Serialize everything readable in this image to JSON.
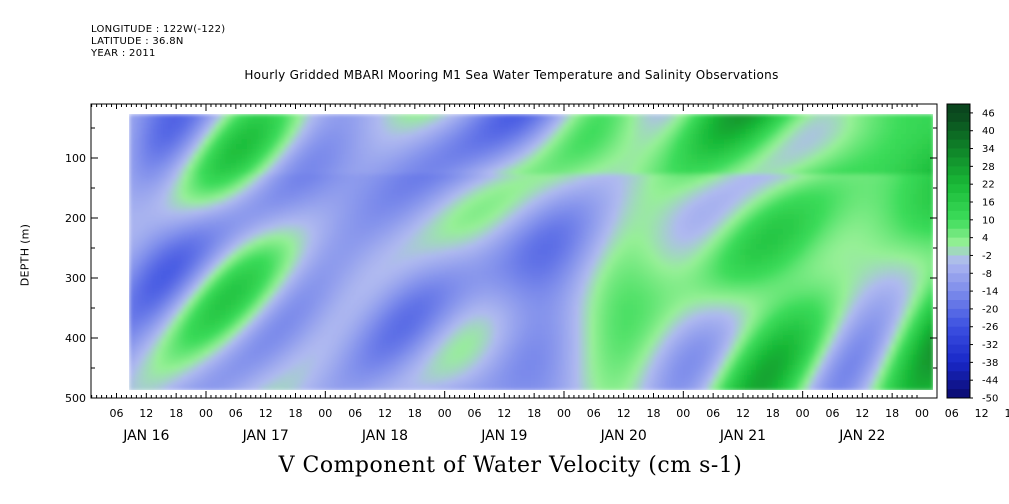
{
  "header": {
    "longitude": "LONGITUDE : 122W(-122)",
    "latitude": "LATITUDE : 36.8N",
    "year": "YEAR : 2011",
    "title": "Hourly Gridded MBARI Mooring M1 Sea Water Temperature and Salinity Observations"
  },
  "chart_data": {
    "type": "heatmap",
    "title": "Hourly Gridded MBARI Mooring M1 Sea Water Temperature and Salinity Observations",
    "xlabel": "",
    "ylabel": "DEPTH (m)",
    "bottom_label": "V Component of Water Velocity (cm s-1)",
    "ylim": [
      500,
      10
    ],
    "yticks": [
      100,
      200,
      300,
      400,
      500
    ],
    "x_hour_labels": [
      "06",
      "12",
      "18",
      "00",
      "06",
      "12",
      "18",
      "00",
      "06",
      "12",
      "18",
      "00",
      "06",
      "12",
      "18",
      "00",
      "06",
      "12",
      "18",
      "00",
      "06",
      "12",
      "18",
      "00",
      "06",
      "12",
      "18",
      "00",
      "06",
      "12",
      "18",
      "00"
    ],
    "day_labels": [
      "JAN 16",
      "JAN 17",
      "JAN 18",
      "JAN 19",
      "JAN 20",
      "JAN 21",
      "JAN 22"
    ],
    "colorbar": {
      "labels": [
        "46",
        "40",
        "34",
        "28",
        "22",
        "16",
        "10",
        "4",
        "-2",
        "-8",
        "-14",
        "-20",
        "-26",
        "-32",
        "-38",
        "-44",
        "-50"
      ]
    }
  }
}
